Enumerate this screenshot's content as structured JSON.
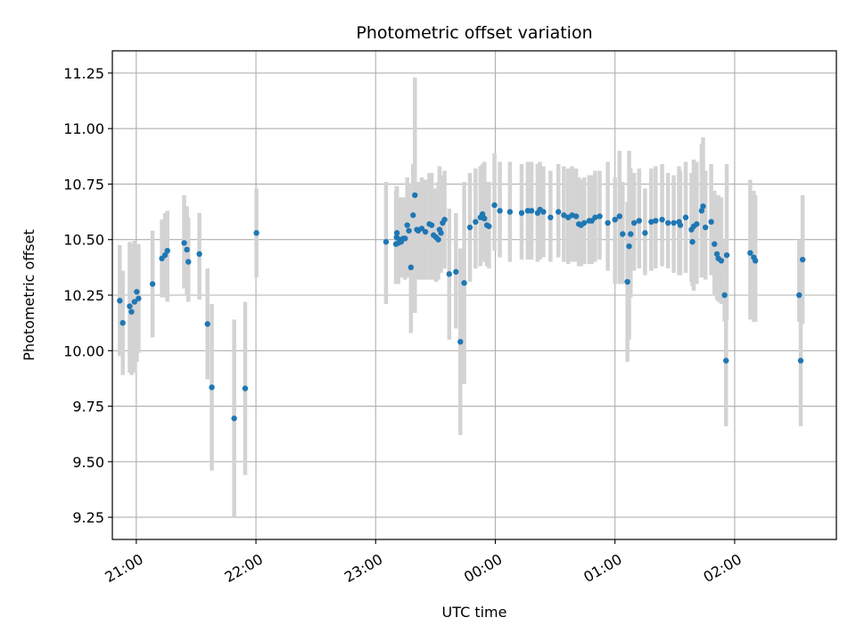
{
  "chart_data": {
    "type": "scatter",
    "title": "Photometric offset variation",
    "xlabel": "UTC time",
    "ylabel": "Photometric offset",
    "x_axis": {
      "unit": "time of night (hours after 00:00, negatives = previous evening)",
      "xlim": [
        -3.2,
        2.85
      ],
      "ticks": [
        -3,
        -2,
        -1,
        0,
        1,
        2
      ],
      "tick_labels": [
        "21:00",
        "22:00",
        "23:00",
        "00:00",
        "01:00",
        "02:00"
      ]
    },
    "y_axis": {
      "ylim": [
        9.15,
        11.35
      ],
      "ticks": [
        9.25,
        9.5,
        9.75,
        10.0,
        10.25,
        10.5,
        10.75,
        11.0,
        11.25
      ],
      "tick_labels": [
        "9.25",
        "9.50",
        "9.75",
        "10.00",
        "10.25",
        "10.50",
        "10.75",
        "11.00",
        "11.25"
      ]
    },
    "grid": true,
    "colors": {
      "marker": "#1f77b4",
      "errorbar": "#d3d3d3",
      "grid": "#b0b0b0"
    },
    "series": [
      {
        "x": [
          -3.138,
          -3.113,
          -3.055,
          -3.04,
          -3.015,
          -2.996,
          -2.981,
          -2.864,
          -2.786,
          -2.76,
          -2.74,
          -2.6,
          -2.577,
          -2.565,
          -2.473,
          -2.405,
          -2.369,
          -2.182,
          -2.09,
          -1.996,
          -0.913,
          -0.83,
          -0.825,
          -0.822,
          -0.81,
          -0.795,
          -0.787,
          -0.769,
          -0.754,
          -0.736,
          -0.722,
          -0.705,
          -0.687,
          -0.672,
          -0.655,
          -0.644,
          -0.615,
          -0.584,
          -0.551,
          -0.532,
          -0.516,
          -0.494,
          -0.476,
          -0.466,
          -0.454,
          -0.44,
          -0.424,
          -0.385,
          -0.329,
          -0.292,
          -0.26,
          -0.212,
          -0.165,
          -0.124,
          -0.107,
          -0.091,
          -0.07,
          -0.053,
          -0.007,
          0.038,
          0.122,
          0.22,
          0.271,
          0.303,
          0.353,
          0.373,
          0.402,
          0.461,
          0.527,
          0.573,
          0.609,
          0.642,
          0.675,
          0.698,
          0.717,
          0.743,
          0.785,
          0.807,
          0.834,
          0.872,
          0.94,
          1.0,
          1.038,
          1.064,
          1.104,
          1.118,
          1.131,
          1.16,
          1.202,
          1.251,
          1.303,
          1.34,
          1.394,
          1.443,
          1.491,
          1.535,
          1.546,
          1.591,
          1.639,
          1.647,
          1.658,
          1.683,
          1.724,
          1.736,
          1.756,
          1.804,
          1.831,
          1.852,
          1.864,
          1.888,
          1.916,
          1.928,
          1.934,
          2.13,
          2.16,
          2.173,
          2.539,
          2.552,
          2.568
        ],
        "y": [
          10.225,
          10.125,
          10.2,
          10.175,
          10.22,
          10.265,
          10.235,
          10.3,
          10.415,
          10.43,
          10.45,
          10.485,
          10.455,
          10.4,
          10.435,
          10.12,
          9.835,
          9.695,
          9.83,
          10.53,
          10.49,
          10.48,
          10.51,
          10.53,
          10.485,
          10.5,
          10.49,
          10.505,
          10.505,
          10.565,
          10.54,
          10.375,
          10.61,
          10.7,
          10.545,
          10.54,
          10.55,
          10.535,
          10.57,
          10.565,
          10.52,
          10.51,
          10.5,
          10.545,
          10.53,
          10.575,
          10.59,
          10.345,
          10.355,
          10.04,
          10.305,
          10.555,
          10.58,
          10.6,
          10.615,
          10.595,
          10.565,
          10.56,
          10.655,
          10.63,
          10.625,
          10.62,
          10.63,
          10.63,
          10.62,
          10.635,
          10.625,
          10.6,
          10.625,
          10.61,
          10.6,
          10.61,
          10.605,
          10.57,
          10.565,
          10.575,
          10.585,
          10.585,
          10.6,
          10.605,
          10.575,
          10.59,
          10.605,
          10.525,
          10.31,
          10.47,
          10.525,
          10.575,
          10.585,
          10.53,
          10.58,
          10.585,
          10.59,
          10.575,
          10.575,
          10.58,
          10.565,
          10.6,
          10.545,
          10.49,
          10.56,
          10.57,
          10.63,
          10.65,
          10.555,
          10.58,
          10.48,
          10.435,
          10.415,
          10.405,
          10.25,
          9.955,
          10.43,
          10.44,
          10.42,
          10.405,
          10.25,
          9.955,
          10.41
        ],
        "yerr_low": [
          9.975,
          9.89,
          9.9,
          9.89,
          9.9,
          9.95,
          9.99,
          10.06,
          10.24,
          10.24,
          10.22,
          10.28,
          10.25,
          10.22,
          10.23,
          9.87,
          9.46,
          9.25,
          9.44,
          10.33,
          10.21,
          10.3,
          10.3,
          10.32,
          10.3,
          10.33,
          10.33,
          10.33,
          10.32,
          10.34,
          10.33,
          10.08,
          10.37,
          10.17,
          10.35,
          10.32,
          10.32,
          10.32,
          10.32,
          10.32,
          10.32,
          10.31,
          10.32,
          10.35,
          10.35,
          10.37,
          10.37,
          10.05,
          10.1,
          9.62,
          9.85,
          10.31,
          10.37,
          10.38,
          10.4,
          10.4,
          10.38,
          10.37,
          10.45,
          10.42,
          10.4,
          10.41,
          10.41,
          10.41,
          10.4,
          10.41,
          10.42,
          10.4,
          10.42,
          10.4,
          10.39,
          10.4,
          10.4,
          10.38,
          10.38,
          10.39,
          10.39,
          10.39,
          10.4,
          10.41,
          10.36,
          10.3,
          10.3,
          10.3,
          9.95,
          10.05,
          10.24,
          10.36,
          10.37,
          10.34,
          10.36,
          10.37,
          10.38,
          10.37,
          10.35,
          10.34,
          10.34,
          10.35,
          10.31,
          10.29,
          10.27,
          10.3,
          10.33,
          10.33,
          10.32,
          10.34,
          10.25,
          10.23,
          10.22,
          10.21,
          10.13,
          9.66,
          10.14,
          10.14,
          10.13,
          10.13,
          10.13,
          9.66,
          10.12
        ],
        "yerr_high": [
          10.475,
          10.36,
          10.49,
          10.48,
          10.495,
          10.48,
          10.48,
          10.54,
          10.59,
          10.62,
          10.63,
          10.7,
          10.65,
          10.6,
          10.62,
          10.37,
          10.21,
          10.14,
          10.22,
          10.73,
          10.76,
          10.72,
          10.74,
          10.74,
          10.69,
          10.69,
          10.69,
          10.69,
          10.69,
          10.78,
          10.75,
          10.67,
          10.84,
          11.23,
          10.75,
          10.76,
          10.78,
          10.77,
          10.8,
          10.8,
          10.73,
          10.73,
          10.76,
          10.83,
          10.78,
          10.79,
          10.81,
          10.64,
          10.62,
          10.46,
          10.76,
          10.8,
          10.82,
          10.83,
          10.84,
          10.85,
          10.76,
          10.76,
          10.89,
          10.85,
          10.85,
          10.84,
          10.85,
          10.85,
          10.84,
          10.85,
          10.83,
          10.81,
          10.84,
          10.83,
          10.82,
          10.83,
          10.82,
          10.78,
          10.77,
          10.78,
          10.79,
          10.79,
          10.81,
          10.81,
          10.85,
          10.78,
          10.9,
          10.76,
          10.67,
          10.9,
          10.82,
          10.8,
          10.82,
          10.73,
          10.82,
          10.83,
          10.84,
          10.8,
          10.79,
          10.83,
          10.81,
          10.85,
          10.8,
          10.72,
          10.86,
          10.85,
          10.93,
          10.96,
          10.81,
          10.84,
          10.72,
          10.7,
          10.7,
          10.69,
          10.5,
          10.32,
          10.84,
          10.77,
          10.72,
          10.7,
          10.5,
          10.32,
          10.7
        ]
      }
    ]
  }
}
